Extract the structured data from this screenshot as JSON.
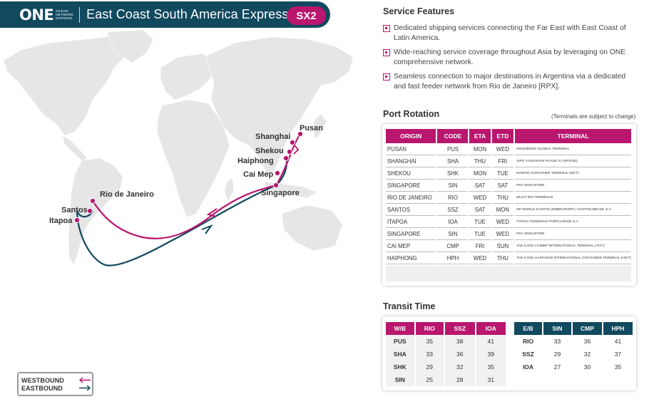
{
  "header": {
    "logo_word": "ONE",
    "logo_sub": [
      "OCEAN",
      "NETWORK",
      "EXPRESS"
    ],
    "title": "East Coast South America Express 2",
    "code": "SX2"
  },
  "colors": {
    "navy": "#11495f",
    "magenta": "#b9166e",
    "land": "#e6e6e6"
  },
  "map": {
    "ports": [
      "Pusan",
      "Shanghai",
      "Shekou",
      "Haiphong",
      "Cai Mep",
      "Singapore",
      "Rio de Janeiro",
      "Santos",
      "Itapoa"
    ]
  },
  "legend": {
    "westbound": "WESTBOUND",
    "eastbound": "EASTBOUND"
  },
  "features": {
    "title": "Service Features",
    "items": [
      "Dedicated shipping services connecting the Far East with East Coast of Latin America.",
      "Wide-reaching service coverage throughout Asia by leveraging on ONE comprehensive network.",
      "Seamless connection to major destinations in Argentina via a dedicated and fast feeder network from Rio de Janeiro [RPX]."
    ]
  },
  "rotation": {
    "title": "Port Rotation",
    "note": "(Terminals are subject to change)",
    "headers": [
      "ORIGIN",
      "CODE",
      "ETA",
      "ETD",
      "TERMINAL"
    ],
    "rows": [
      [
        "PUSAN",
        "PUS",
        "MON",
        "WED",
        "DONGBOOK GLOBAL TERMINAL"
      ],
      [
        "SHANGHAI",
        "SHA",
        "THU",
        "FRI",
        "SIPG YANGSHAN PHASE IV (SIPGSD)"
      ],
      [
        "SHEKOU",
        "SHK",
        "MON",
        "TUE",
        "MAWAN CONTAINER TERMINAL (MCT)"
      ],
      [
        "SINGAPORE",
        "SIN",
        "SAT",
        "SAT",
        "PSA SINGAPORE"
      ],
      [
        "RIO DE JANEIRO",
        "RIO",
        "WED",
        "THU",
        "MULTI RIO TERMINAIS"
      ],
      [
        "SANTOS",
        "SSZ",
        "SAT",
        "MON",
        "DP WORLD SANTOS (EMBRAPORT) / SANTOS BRASIL S.A."
      ],
      [
        "ITAPOA",
        "IOA",
        "TUE",
        "WED",
        "ITAPOA TERMINAIS PORTUARIOS S.A."
      ],
      [
        "SINGAPORE",
        "SIN",
        "TUE",
        "WED",
        "PSA SINGAPORE"
      ],
      [
        "CAI MEP",
        "CMP",
        "FRI",
        "SUN",
        "TAN CANG CAIMEP INTERNATIONAL TERMINAL (TCIT)"
      ],
      [
        "HAIPHONG",
        "HPH",
        "WED",
        "THU",
        "TAN CANG HAIPHONG INTERNATIONAL CONTAINER TERMINAL (HICT)"
      ]
    ]
  },
  "transit": {
    "title": "Transit Time",
    "westbound": {
      "headers": [
        "W/B",
        "RIO",
        "SSZ",
        "IOA"
      ],
      "rows": [
        [
          "PUS",
          "35",
          "38",
          "41"
        ],
        [
          "SHA",
          "33",
          "36",
          "39"
        ],
        [
          "SHK",
          "29",
          "32",
          "35"
        ],
        [
          "SIN",
          "25",
          "28",
          "31"
        ]
      ]
    },
    "eastbound": {
      "headers": [
        "E/B",
        "SIN",
        "CMP",
        "HPH"
      ],
      "rows": [
        [
          "RIO",
          "33",
          "36",
          "41"
        ],
        [
          "SSZ",
          "29",
          "32",
          "37"
        ],
        [
          "IOA",
          "27",
          "30",
          "35"
        ]
      ]
    }
  }
}
